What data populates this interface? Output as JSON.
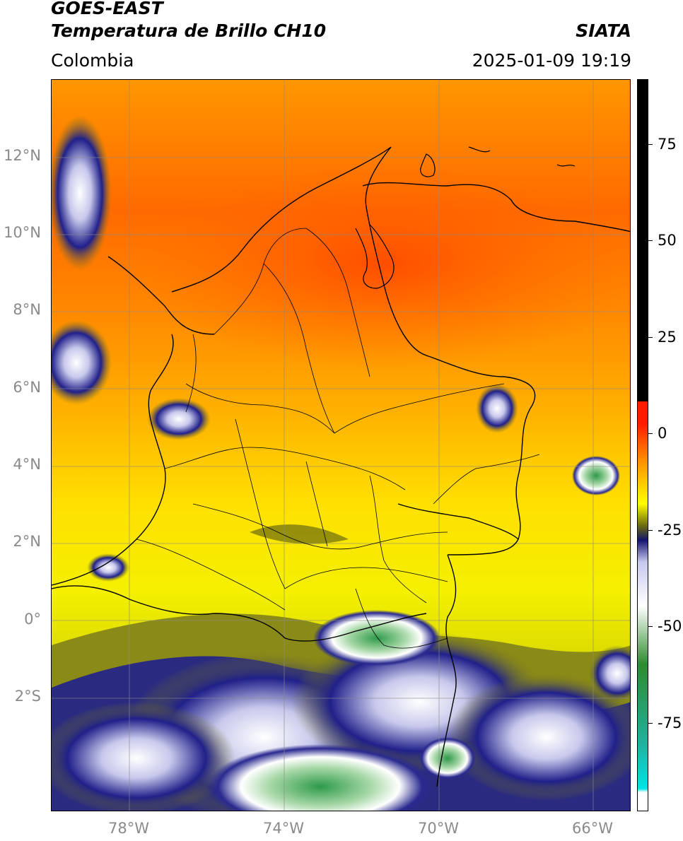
{
  "header": {
    "title_line1": "GOES-EAST",
    "title_line2": "Temperatura de Brillo CH10",
    "region": "Colombia",
    "source": "SIATA",
    "timestamp": "2025-01-09 19:19"
  },
  "map": {
    "lat_ticks": [
      "12°N",
      "10°N",
      "8°N",
      "6°N",
      "4°N",
      "2°N",
      "0°",
      "2°S"
    ],
    "lon_ticks": [
      "78°W",
      "74°W",
      "70°W",
      "66°W"
    ],
    "extent": {
      "lon_min": -79.6,
      "lon_max": -64.6,
      "lat_min": -4.9,
      "lat_max": 14.1
    }
  },
  "colorbar": {
    "tick_labels": [
      "75",
      "50",
      "25",
      "0",
      "-25",
      "-50",
      "-75"
    ],
    "tick_values": [
      75,
      50,
      25,
      0,
      -25,
      -50,
      -75
    ],
    "range": [
      -95,
      95
    ],
    "colors": {
      "black": "#000000",
      "red": "#ff1a00",
      "orange": "#ff8c00",
      "yellow": "#ffff00",
      "olive": "#6b6b10",
      "navy": "#14146e",
      "white": "#ffffff",
      "green": "#2e8b2e",
      "teal": "#20b2a0",
      "cyan": "#00e5e5"
    }
  }
}
